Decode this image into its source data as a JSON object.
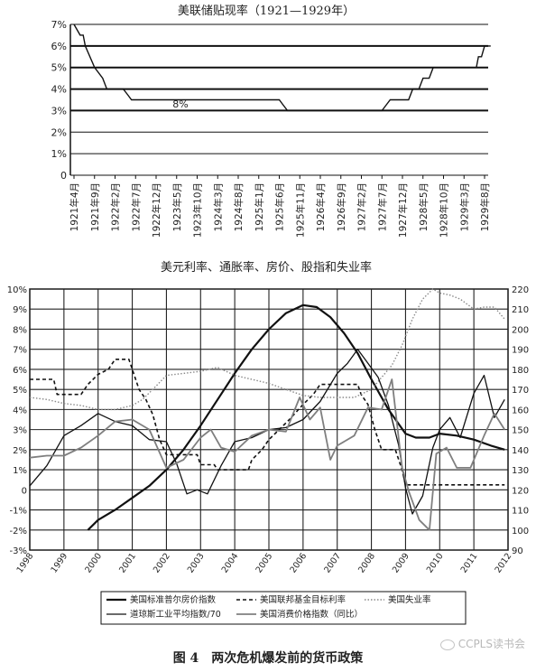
{
  "chart_data": [
    {
      "type": "line",
      "title": "美联储贴现率（1921—1929年）",
      "ylim": [
        0,
        7
      ],
      "y_ticks": [
        "0",
        "1%",
        "2%",
        "3%",
        "4%",
        "5%",
        "6%",
        "7%"
      ],
      "categories": [
        "1921年4月",
        "1921年9月",
        "1922年2月",
        "1922年7月",
        "1922年12月",
        "1923年5月",
        "1923年10月",
        "1924年3月",
        "1924年8月",
        "1925年1月",
        "1925年6月",
        "1925年11月",
        "1926年4月",
        "1926年9月",
        "1927年2月",
        "1927年7月",
        "1927年12月",
        "1928年5月",
        "1928年10月",
        "1929年3月",
        "1929年8月"
      ],
      "annotation": "8%",
      "series": [
        {
          "name": "贴现率",
          "points": [
            [
              0,
              7.0
            ],
            [
              0.3,
              6.5
            ],
            [
              0.45,
              6.5
            ],
            [
              0.55,
              6.0
            ],
            [
              1.0,
              5.0
            ],
            [
              1.4,
              4.5
            ],
            [
              1.6,
              4.0
            ],
            [
              2.4,
              4.0
            ],
            [
              2.6,
              3.75
            ],
            [
              2.8,
              3.5
            ],
            [
              10.0,
              3.5
            ],
            [
              10.2,
              3.25
            ],
            [
              10.4,
              3.0
            ],
            [
              15.0,
              3.0
            ],
            [
              15.2,
              3.25
            ],
            [
              15.4,
              3.5
            ],
            [
              16.3,
              3.5
            ],
            [
              16.5,
              4.0
            ],
            [
              16.8,
              4.0
            ],
            [
              17.0,
              4.5
            ],
            [
              17.3,
              4.5
            ],
            [
              17.5,
              5.0
            ],
            [
              19.6,
              5.0
            ],
            [
              19.7,
              5.5
            ],
            [
              19.85,
              5.5
            ],
            [
              20.0,
              6.0
            ],
            [
              20.3,
              6.0
            ]
          ]
        }
      ]
    },
    {
      "type": "line",
      "title": "美元利率、通胀率、房价、股指和失业率",
      "ylim_left": [
        -3,
        10
      ],
      "ylim_right": [
        90,
        220
      ],
      "y_left_ticks": [
        "-3%",
        "-2%",
        "-1%",
        "0",
        "1%",
        "2%",
        "3%",
        "4%",
        "5%",
        "6%",
        "7%",
        "8%",
        "9%",
        "10%"
      ],
      "y_right_ticks": [
        "90",
        "100",
        "110",
        "120",
        "130",
        "140",
        "150",
        "160",
        "170",
        "180",
        "190",
        "200",
        "210",
        "220"
      ],
      "x_ticks": [
        "1998",
        "1999",
        "2000",
        "2001",
        "2002",
        "2003",
        "2004",
        "2005",
        "2006",
        "2007",
        "2008",
        "2009",
        "2010",
        "2011",
        "2012"
      ],
      "legend": [
        {
          "label": "美国标准普尔房价指数",
          "style": "solid-thick",
          "color": "#111111"
        },
        {
          "label": "美国联邦基金目标利率",
          "style": "dashed",
          "color": "#111111"
        },
        {
          "label": "美国失业率",
          "style": "dotted",
          "color": "#888888"
        },
        {
          "label": "道琼斯工业平均指数/70",
          "style": "solid",
          "color": "#111111"
        },
        {
          "label": "美国消费价格指数（同比）",
          "style": "solid-gray",
          "color": "#888888"
        }
      ],
      "series": [
        {
          "name": "美国标准普尔房价指数",
          "axis": "right",
          "x": [
            1999.7,
            2000.0,
            2000.5,
            2001.0,
            2001.5,
            2002.0,
            2002.5,
            2003.0,
            2003.5,
            2004.0,
            2004.5,
            2005.0,
            2005.5,
            2006.0,
            2006.4,
            2006.8,
            2007.2,
            2007.6,
            2008.0,
            2008.5,
            2009.0,
            2009.3,
            2009.7,
            2010.0,
            2010.5,
            2011.0,
            2011.5,
            2011.9
          ],
          "y": [
            100,
            105,
            110,
            116,
            122,
            130,
            140,
            152,
            165,
            178,
            190,
            200,
            208,
            212,
            211,
            206,
            198,
            188,
            175,
            160,
            148,
            146,
            146,
            148,
            147,
            145,
            142,
            140
          ]
        },
        {
          "name": "美国联邦基金目标利率",
          "axis": "left",
          "x": [
            1998.0,
            1998.7,
            1998.8,
            1999.5,
            1999.7,
            2000.0,
            2000.3,
            2000.5,
            2000.9,
            2001.0,
            2001.2,
            2001.4,
            2001.6,
            2001.8,
            2002.0,
            2002.9,
            2003.0,
            2003.4,
            2003.5,
            2004.4,
            2004.5,
            2004.8,
            2005.0,
            2005.3,
            2005.6,
            2006.0,
            2006.3,
            2006.5,
            2007.6,
            2007.7,
            2007.9,
            2008.1,
            2008.3,
            2008.7,
            2008.9,
            2009.0,
            2011.9
          ],
          "y": [
            5.5,
            5.5,
            4.75,
            4.75,
            5.25,
            5.75,
            6.0,
            6.5,
            6.5,
            6.0,
            5.0,
            4.5,
            3.75,
            2.5,
            1.75,
            1.75,
            1.25,
            1.25,
            1.0,
            1.0,
            1.5,
            2.0,
            2.5,
            3.0,
            3.5,
            4.25,
            4.75,
            5.25,
            5.25,
            4.75,
            4.25,
            3.0,
            2.0,
            2.0,
            1.0,
            0.25,
            0.25
          ]
        },
        {
          "name": "美国失业率",
          "axis": "left",
          "x": [
            1998.0,
            1998.5,
            1999.0,
            1999.5,
            2000.0,
            2000.5,
            2001.0,
            2001.3,
            2001.6,
            2002.0,
            2002.5,
            2003.0,
            2003.5,
            2004.0,
            2004.5,
            2005.0,
            2005.5,
            2006.0,
            2006.5,
            2007.0,
            2007.5,
            2008.0,
            2008.3,
            2008.6,
            2008.9,
            2009.2,
            2009.5,
            2009.8,
            2010.0,
            2010.3,
            2010.6,
            2011.0,
            2011.3,
            2011.6,
            2011.9
          ],
          "y": [
            4.6,
            4.5,
            4.3,
            4.2,
            4.0,
            4.0,
            4.2,
            4.5,
            5.0,
            5.7,
            5.8,
            5.9,
            6.1,
            5.7,
            5.5,
            5.3,
            5.0,
            4.7,
            4.6,
            4.6,
            4.6,
            5.0,
            5.6,
            6.2,
            7.2,
            8.5,
            9.5,
            10.0,
            9.8,
            9.7,
            9.5,
            9.0,
            9.1,
            9.1,
            8.5
          ]
        },
        {
          "name": "道琼斯工业平均指数/70",
          "axis": "right",
          "x": [
            1998.0,
            1998.5,
            1999.0,
            1999.5,
            2000.0,
            2000.5,
            2001.0,
            2001.5,
            2002.0,
            2002.3,
            2002.6,
            2002.9,
            2003.2,
            2003.6,
            2004.0,
            2004.5,
            2005.0,
            2005.5,
            2006.0,
            2006.5,
            2007.0,
            2007.3,
            2007.6,
            2007.9,
            2008.2,
            2008.5,
            2008.8,
            2009.0,
            2009.2,
            2009.5,
            2009.8,
            2010.0,
            2010.3,
            2010.6,
            2011.0,
            2011.3,
            2011.6,
            2011.9
          ],
          "y": [
            122,
            132,
            147,
            152,
            158,
            154,
            152,
            145,
            144,
            133,
            118,
            120,
            118,
            132,
            144,
            146,
            150,
            151,
            155,
            164,
            178,
            183,
            190,
            183,
            176,
            162,
            142,
            121,
            108,
            117,
            141,
            150,
            156,
            146,
            168,
            177,
            156,
            165
          ]
        },
        {
          "name": "美国消费价格指数（同比）",
          "axis": "left",
          "x": [
            1998.0,
            1998.5,
            1999.0,
            1999.5,
            2000.0,
            2000.5,
            2001.0,
            2001.5,
            2002.0,
            2002.5,
            2003.0,
            2003.3,
            2003.6,
            2004.0,
            2004.5,
            2005.0,
            2005.5,
            2005.9,
            2006.2,
            2006.5,
            2006.8,
            2007.0,
            2007.5,
            2007.9,
            2008.3,
            2008.6,
            2008.9,
            2009.1,
            2009.4,
            2009.7,
            2009.9,
            2010.2,
            2010.5,
            2010.9,
            2011.3,
            2011.6,
            2011.9
          ],
          "y": [
            1.6,
            1.7,
            1.7,
            2.1,
            2.7,
            3.4,
            3.5,
            3.0,
            1.1,
            1.5,
            2.6,
            3.0,
            2.1,
            1.9,
            2.7,
            3.0,
            2.9,
            4.6,
            3.5,
            4.1,
            1.5,
            2.2,
            2.7,
            4.1,
            4.0,
            5.5,
            1.1,
            -0.1,
            -1.5,
            -2.0,
            1.8,
            2.1,
            1.1,
            1.1,
            2.7,
            3.8,
            3.0
          ]
        }
      ]
    }
  ],
  "caption": "图 4　两次危机爆发前的货币政策",
  "watermark": "CCPLS读书会",
  "watermark_icon": "wechat-icon"
}
